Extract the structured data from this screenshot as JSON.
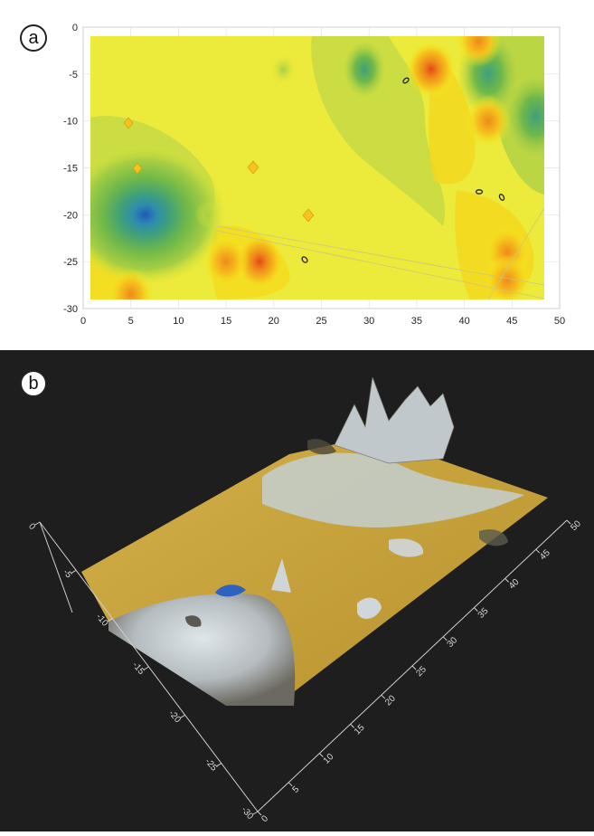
{
  "panel_labels": {
    "a": "a",
    "b": "b"
  },
  "chart_data": [
    {
      "type": "contour",
      "x_ticks": [
        0,
        5,
        10,
        15,
        20,
        25,
        30,
        35,
        40,
        45,
        50
      ],
      "y_ticks": [
        0,
        -5,
        -10,
        -15,
        -20,
        -25,
        -30
      ],
      "xlim": [
        0,
        50
      ],
      "ylim": [
        -30,
        0
      ],
      "grid": true,
      "colormap": [
        "#1e5ab4",
        "#2e8bb0",
        "#3fa07a",
        "#6fb84a",
        "#a8cf42",
        "#d7e53c",
        "#f4ee1e",
        "#f6c21c",
        "#ef8a1a",
        "#e44a16"
      ],
      "features": [
        {
          "kind": "low",
          "x": 6.5,
          "y": -20,
          "level": 0
        },
        {
          "kind": "low",
          "x": 13,
          "y": -20,
          "level": 3
        },
        {
          "kind": "low",
          "x": 21,
          "y": -4.5,
          "level": 3
        },
        {
          "kind": "low",
          "x": 29.5,
          "y": -4.5,
          "level": 2
        },
        {
          "kind": "low",
          "x": 42.5,
          "y": -5,
          "level": 1
        },
        {
          "kind": "low",
          "x": 47.5,
          "y": -9.5,
          "level": 1
        },
        {
          "kind": "high",
          "x": 36.5,
          "y": -4.5,
          "level": 9
        },
        {
          "kind": "high",
          "x": 41.5,
          "y": -1.5,
          "level": 8
        },
        {
          "kind": "high",
          "x": 42.5,
          "y": -10,
          "level": 8
        },
        {
          "kind": "high",
          "x": 44.5,
          "y": -24,
          "level": 8
        },
        {
          "kind": "high",
          "x": 18.5,
          "y": -25,
          "level": 9
        },
        {
          "kind": "high",
          "x": 15,
          "y": -25,
          "level": 8
        },
        {
          "kind": "high",
          "x": 5,
          "y": -28.5,
          "level": 8
        },
        {
          "kind": "high",
          "x": 44.5,
          "y": -27,
          "level": 8
        }
      ]
    },
    {
      "type": "surface",
      "x_ticks": [
        0,
        5,
        10,
        15,
        20,
        25,
        30,
        35,
        40,
        45,
        50
      ],
      "y_ticks": [
        0,
        -5,
        -10,
        -15,
        -20,
        -25,
        -30
      ],
      "xlim": [
        0,
        50
      ],
      "ylim": [
        -30,
        0
      ],
      "surface_colors": [
        "#c9a63a",
        "#b9c4c4",
        "#2d62c0",
        "#3a3a3a"
      ],
      "background": "#1e1e1e"
    }
  ]
}
